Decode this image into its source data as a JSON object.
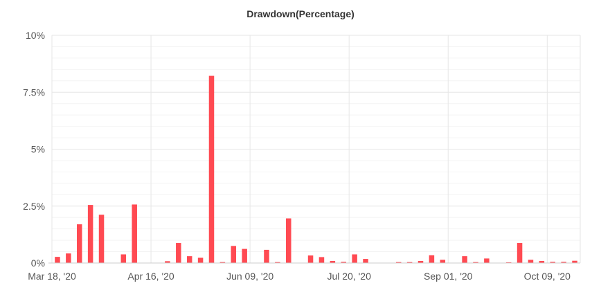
{
  "colors": {
    "bar": "#ff4a52",
    "major_grid": "#e6e6e6",
    "minor_grid": "#f4f4f4",
    "axis": "#cccccc"
  },
  "chart_data": {
    "type": "bar",
    "title": "Drawdown(Percentage)",
    "xlabel": "",
    "ylabel": "",
    "ylim": [
      0,
      10
    ],
    "grid": true,
    "y_ticks": [
      {
        "value": 0,
        "label": "0%"
      },
      {
        "value": 2.5,
        "label": "2.5%"
      },
      {
        "value": 5,
        "label": "5%"
      },
      {
        "value": 7.5,
        "label": "7.5%"
      },
      {
        "value": 10,
        "label": "10%"
      }
    ],
    "x_ticks": [
      {
        "index": 0,
        "label": "Mar 18, '20"
      },
      {
        "index": 9,
        "label": "Apr 16, '20"
      },
      {
        "index": 18,
        "label": "Jun 09, '20"
      },
      {
        "index": 27,
        "label": "Jul 20, '20"
      },
      {
        "index": 36,
        "label": "Sep 01, '20"
      },
      {
        "index": 45,
        "label": "Oct 09, '20"
      }
    ],
    "values": [
      0.27,
      0.42,
      1.7,
      2.55,
      2.12,
      0,
      0.38,
      2.57,
      0,
      0,
      0.08,
      0.88,
      0.3,
      0.23,
      8.22,
      0.04,
      0.75,
      0.62,
      0,
      0.58,
      0.04,
      1.96,
      0,
      0.33,
      0.26,
      0.09,
      0.05,
      0.38,
      0.18,
      0,
      0,
      0.04,
      0.04,
      0.09,
      0.34,
      0.14,
      0,
      0.3,
      0.04,
      0.2,
      0,
      0.03,
      0.88,
      0.14,
      0.09,
      0.05,
      0.05,
      0.1
    ]
  }
}
